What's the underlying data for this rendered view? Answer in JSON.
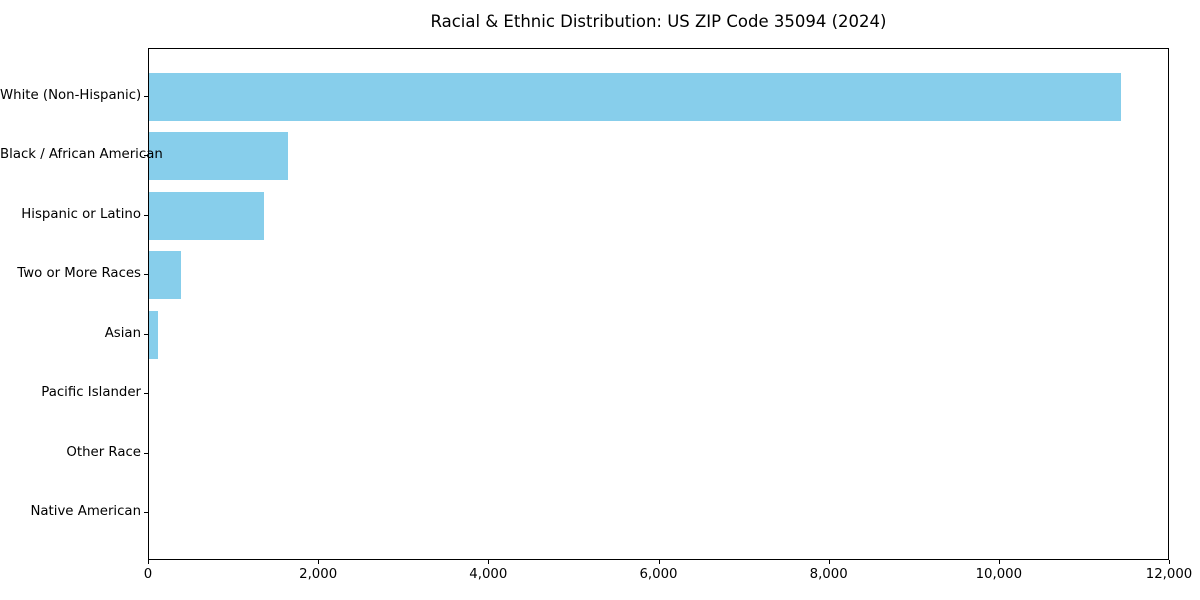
{
  "chart_data": {
    "type": "bar",
    "orientation": "horizontal",
    "title": "Racial & Ethnic Distribution: US ZIP Code 35094 (2024)",
    "categories": [
      "White (Non-Hispanic)",
      "Black / African American",
      "Hispanic or Latino",
      "Two or More Races",
      "Asian",
      "Pacific Islander",
      "Other Race",
      "Native American"
    ],
    "values": [
      11420,
      1630,
      1350,
      380,
      100,
      0,
      0,
      0
    ],
    "xlabel": "",
    "ylabel": "",
    "xlim": [
      0,
      12000
    ],
    "x_ticks": [
      0,
      2000,
      4000,
      6000,
      8000,
      10000,
      12000
    ],
    "x_tick_labels": [
      "0",
      "2,000",
      "4,000",
      "6,000",
      "8,000",
      "10,000",
      "12,000"
    ],
    "bar_color": "#87CEEB",
    "axis_color": "#000000",
    "background_color": "#ffffff",
    "grid": false,
    "legend": "none"
  }
}
